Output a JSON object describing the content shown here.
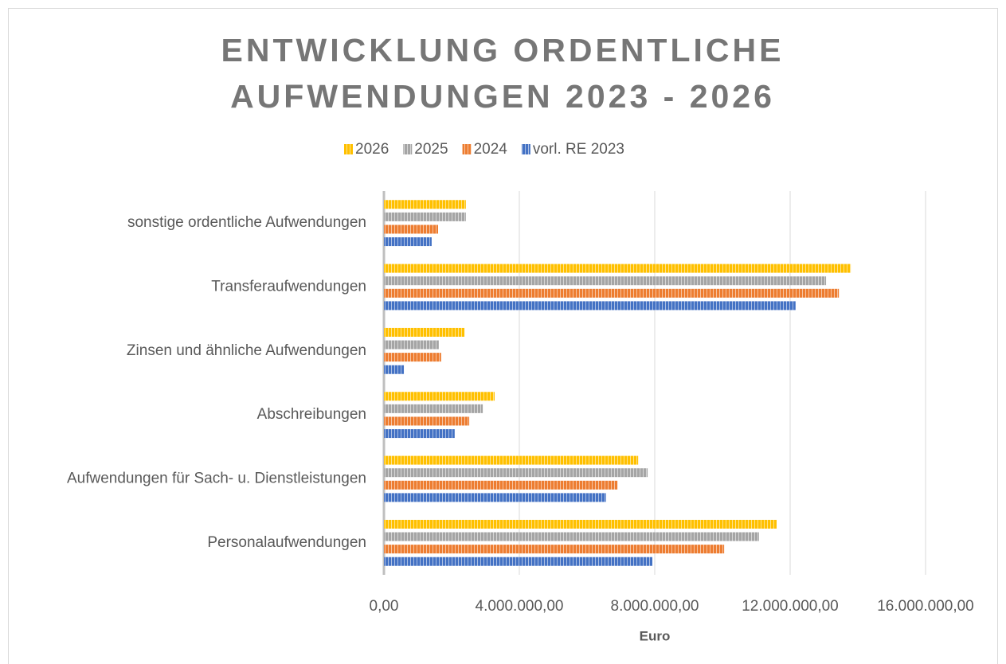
{
  "chart_data": {
    "type": "hbar",
    "title": "ENTWICKLUNG ORDENTLICHE AUFWENDUNGEN 2023 - 2026",
    "x_label": "Euro",
    "categories": [
      "sonstige ordentliche Aufwendungen",
      "Transferaufwendungen",
      "Zinsen und ähnliche Aufwendungen",
      "Abschreibungen",
      "Aufwendungen für Sach- u. Dienstleistungen",
      "Personalaufwendungen"
    ],
    "series": [
      {
        "name": "2026",
        "color": "#ffc000",
        "values": [
          2420000,
          13790000,
          2380000,
          3270000,
          7510000,
          11600000
        ]
      },
      {
        "name": "2025",
        "color": "#a5a5a5",
        "values": [
          2420000,
          13060000,
          1620000,
          2920000,
          7790000,
          11080000
        ]
      },
      {
        "name": "2024",
        "color": "#ed7d31",
        "values": [
          1600000,
          13440000,
          1690000,
          2520000,
          6900000,
          10050000
        ]
      },
      {
        "name": "vorl. RE 2023",
        "color": "#4472c4",
        "values": [
          1410000,
          12160000,
          590000,
          2090000,
          6560000,
          7930000
        ]
      }
    ],
    "xlim": [
      0,
      16000000
    ],
    "xticks": [
      {
        "value": 0,
        "label": "0,00"
      },
      {
        "value": 4000000,
        "label": "4.000.000,00"
      },
      {
        "value": 8000000,
        "label": "8.000.000,00"
      },
      {
        "value": 12000000,
        "label": "12.000.000,00"
      },
      {
        "value": 16000000,
        "label": "16.000.000,00"
      }
    ],
    "grid": true,
    "legend": "top"
  }
}
